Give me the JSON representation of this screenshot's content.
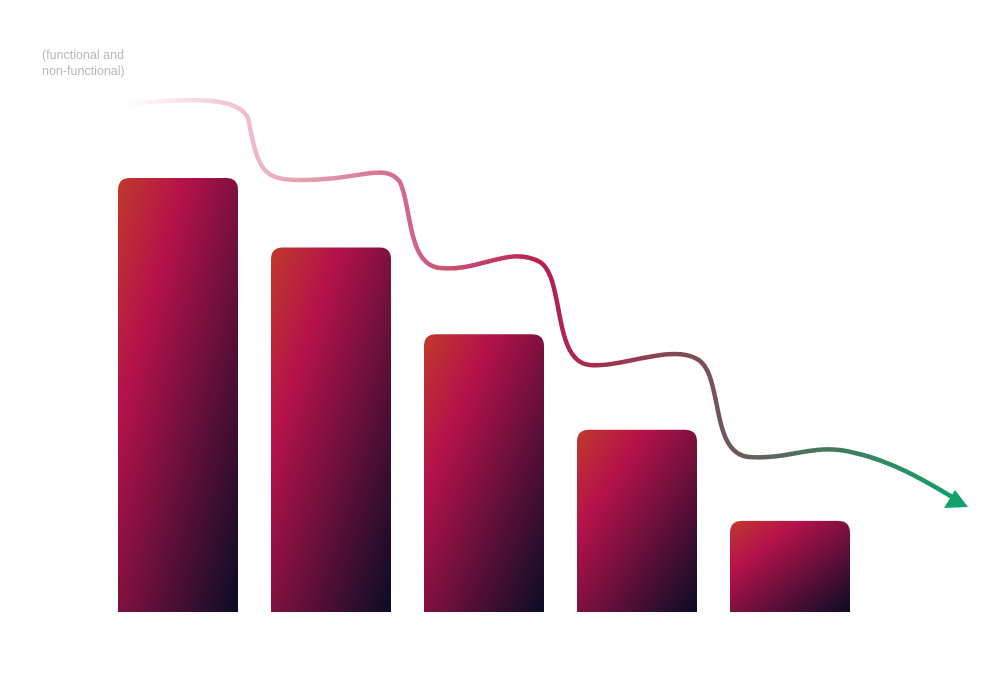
{
  "annotation": {
    "line1": "(functional and",
    "line2": "non-functional)"
  },
  "colors": {
    "bar_top_left": "#c0392b",
    "bar_mid": "#b5124a",
    "bar_bottom_right": "#0a0c26",
    "trend_start": "#f3c9d4",
    "trend_mid": "#b81e4e",
    "trend_end": "#0ea36a"
  },
  "chart_data": {
    "type": "bar",
    "categories": [
      "",
      "",
      "",
      "",
      ""
    ],
    "values": [
      100,
      84,
      64,
      42,
      21
    ],
    "ylim": [
      0,
      100
    ],
    "grid": false,
    "axes_visible": false,
    "trend_arrow": {
      "direction": "down",
      "description": "stepped decreasing arrow above bars"
    }
  }
}
